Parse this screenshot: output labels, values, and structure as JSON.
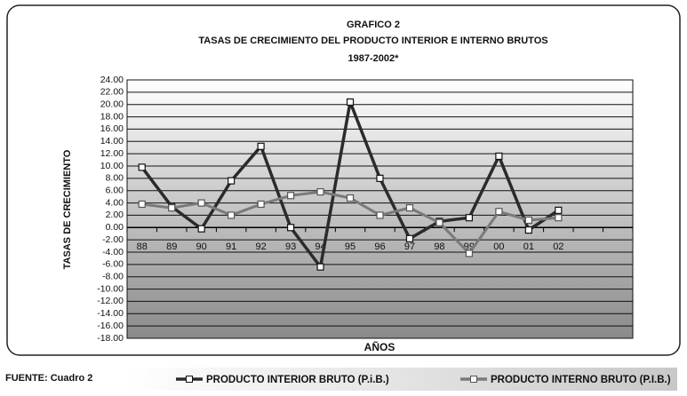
{
  "chart_data": {
    "type": "line",
    "title": "GRAFICO 2",
    "subtitle": "TASAS DE CRECIMIENTO DEL PRODUCTO INTERIOR E INTERNO BRUTOS",
    "period": "1987-2002*",
    "y_label": "TASAS DE CRECIMIENTO",
    "x_label": "AÑOS",
    "source": "FUENTE: Cuadro 2",
    "categories": [
      "88",
      "89",
      "90",
      "91",
      "92",
      "93",
      "94",
      "95",
      "96",
      "97",
      "98",
      "99",
      "00",
      "01",
      "02",
      null,
      null
    ],
    "series": [
      {
        "name": "PRODUCTO INTERIOR BRUTO (P.i.B.)",
        "color": "#2b2b2b",
        "values": [
          9.8,
          3.4,
          -0.2,
          7.6,
          13.2,
          0,
          -6.4,
          20.4,
          8.0,
          -1.8,
          1.0,
          1.6,
          11.6,
          -0.4,
          2.8,
          null,
          null
        ]
      },
      {
        "name": "PRODUCTO INTERNO BRUTO (P.I.B.)",
        "color": "#7a7a7a",
        "values": [
          3.8,
          3.2,
          4.0,
          2.0,
          3.8,
          5.2,
          5.8,
          4.8,
          2.0,
          3.2,
          0.8,
          -4.2,
          2.6,
          1.2,
          1.6,
          null,
          null
        ]
      }
    ],
    "ylim": [
      -18,
      24
    ],
    "yticks": [
      {
        "value": -18,
        "label": "-18.00"
      },
      {
        "value": -16,
        "label": "-16.00"
      },
      {
        "value": -14,
        "label": "-14.00"
      },
      {
        "value": -12,
        "label": "-12.00"
      },
      {
        "value": -10,
        "label": "-10.00"
      },
      {
        "value": -8,
        "label": "-8.00"
      },
      {
        "value": -6,
        "label": "-6.00"
      },
      {
        "value": -4,
        "label": "-4.00"
      },
      {
        "value": -2,
        "label": "-2.00"
      },
      {
        "value": 0,
        "label": "0.00"
      },
      {
        "value": 2,
        "label": "2.00"
      },
      {
        "value": 4,
        "label": "4.00"
      },
      {
        "value": 6,
        "label": "6.00"
      },
      {
        "value": 8,
        "label": "8.00"
      },
      {
        "value": 10,
        "label": "10.00"
      },
      {
        "value": 12,
        "label": "12.00"
      },
      {
        "value": 14,
        "label": "14.00"
      },
      {
        "value": 16,
        "label": "16.00"
      },
      {
        "value": 18,
        "label": "18.00"
      },
      {
        "value": 20,
        "label": "20.00"
      },
      {
        "value": 22,
        "label": "22.00"
      },
      {
        "value": 24,
        "label": "24.00"
      }
    ],
    "grid": true
  }
}
